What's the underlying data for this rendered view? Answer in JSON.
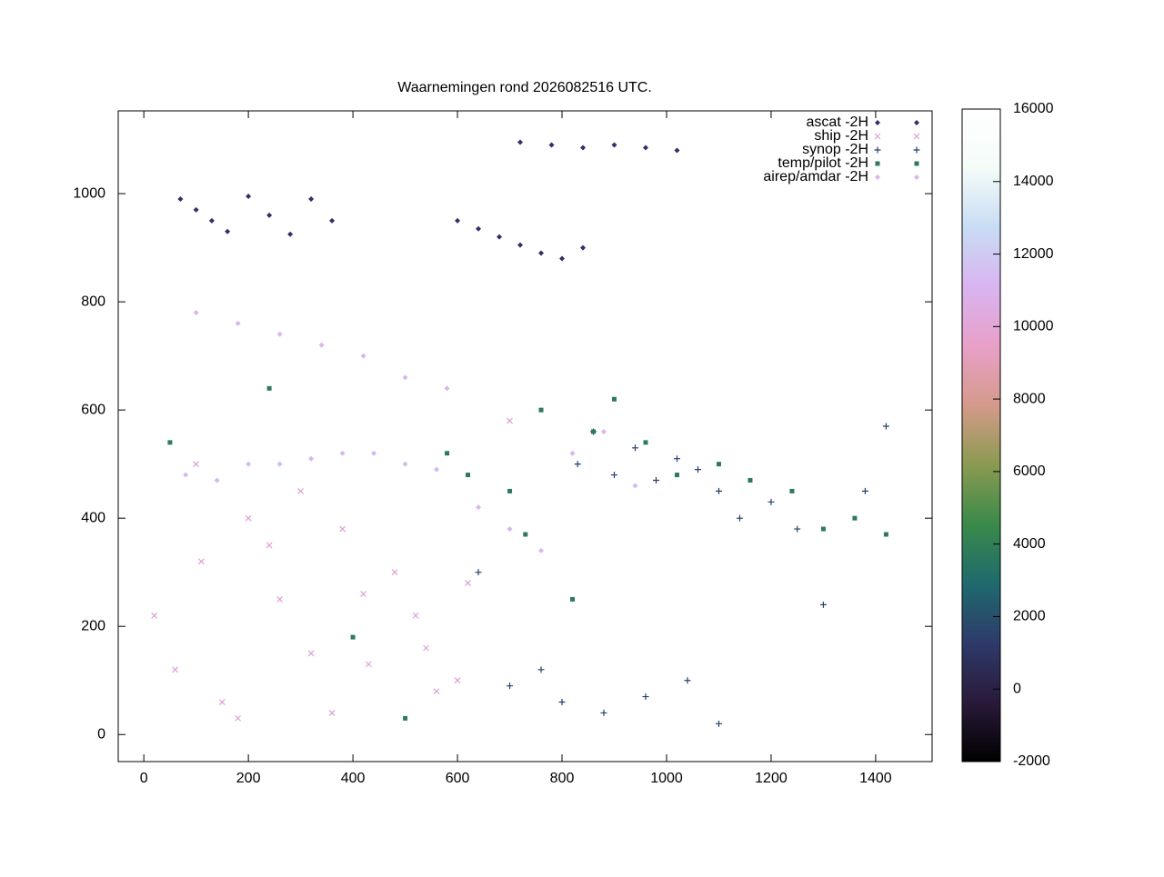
{
  "chart_data": {
    "type": "scatter",
    "title": "Waarnemingen rond 2026082516 UTC.",
    "xlim": [
      -49,
      1508
    ],
    "ylim": [
      -50,
      1153
    ],
    "xticks": [
      0,
      200,
      400,
      600,
      800,
      1000,
      1200,
      1400
    ],
    "yticks": [
      0,
      200,
      400,
      600,
      800,
      1000
    ],
    "legend": "top-right",
    "colorbar": {
      "lim": [
        -2000,
        16000
      ],
      "ticks": [
        -2000,
        0,
        2000,
        4000,
        6000,
        8000,
        10000,
        12000,
        14000,
        16000
      ],
      "colors": [
        "#000000",
        "#2a1a3a",
        "#2e3a6a",
        "#1f6a6e",
        "#3a8a4a",
        "#8a9a50",
        "#d49a8a",
        "#e8a0c8",
        "#d8b4f0",
        "#c8dcf4",
        "#f4fcf8",
        "#ffffff"
      ]
    },
    "series": [
      {
        "name": "ascat -2H",
        "marker": "diamond",
        "color": "#303068",
        "x": [
          70,
          100,
          130,
          160,
          200,
          240,
          280,
          320,
          360,
          600,
          640,
          680,
          720,
          760,
          800,
          840,
          720,
          780,
          840,
          900,
          960,
          1020
        ],
        "values": [
          990,
          970,
          950,
          930,
          995,
          960,
          925,
          990,
          950,
          950,
          935,
          920,
          905,
          890,
          880,
          900,
          1095,
          1090,
          1085,
          1090,
          1085,
          1080
        ]
      },
      {
        "name": "ship -2H",
        "marker": "cross",
        "color": "#dca0d4",
        "x": [
          20,
          60,
          110,
          150,
          200,
          260,
          320,
          380,
          430,
          480,
          520,
          560,
          600,
          100,
          180,
          240,
          300,
          360,
          420,
          540,
          620,
          700
        ],
        "values": [
          220,
          120,
          320,
          60,
          400,
          250,
          150,
          380,
          130,
          300,
          220,
          80,
          100,
          500,
          30,
          350,
          450,
          40,
          260,
          160,
          280,
          580
        ]
      },
      {
        "name": "synop -2H",
        "marker": "plus",
        "color": "#27406a",
        "x": [
          830,
          860,
          900,
          940,
          980,
          1020,
          1060,
          1100,
          1140,
          1200,
          1250,
          700,
          760,
          800,
          880,
          960,
          1040,
          1100,
          1300,
          1380,
          1420,
          640
        ],
        "values": [
          500,
          560,
          480,
          530,
          470,
          510,
          490,
          450,
          400,
          430,
          380,
          90,
          120,
          60,
          40,
          70,
          100,
          20,
          240,
          450,
          570,
          300
        ]
      },
      {
        "name": "temp/pilot -2H",
        "marker": "square",
        "color": "#2f7a5e",
        "x": [
          580,
          620,
          700,
          760,
          860,
          900,
          960,
          1020,
          1100,
          1160,
          1240,
          1300,
          1360,
          1420,
          50,
          240,
          400,
          500,
          730,
          820
        ],
        "values": [
          520,
          480,
          450,
          600,
          560,
          620,
          540,
          480,
          500,
          470,
          450,
          380,
          400,
          370,
          540,
          640,
          180,
          30,
          370,
          250
        ]
      },
      {
        "name": "airep/amdar -2H",
        "marker": "diamond",
        "color": "#d6b8ec",
        "x": [
          80,
          140,
          200,
          260,
          320,
          380,
          440,
          500,
          560,
          100,
          180,
          260,
          340,
          420,
          500,
          580,
          640,
          700,
          760,
          820,
          880,
          940
        ],
        "values": [
          480,
          470,
          500,
          500,
          510,
          520,
          520,
          500,
          490,
          780,
          760,
          740,
          720,
          700,
          660,
          640,
          420,
          380,
          340,
          520,
          560,
          460
        ]
      }
    ]
  }
}
